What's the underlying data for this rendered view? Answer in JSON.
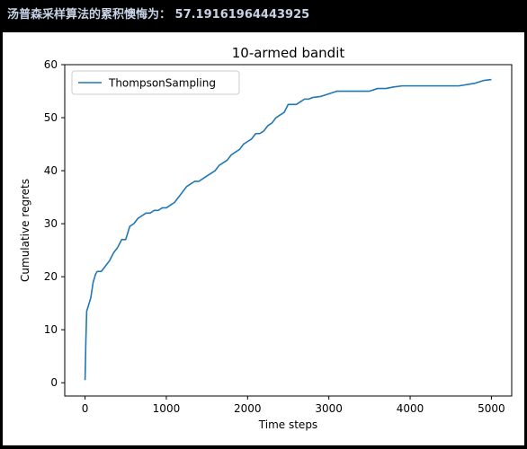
{
  "output": {
    "text": "汤普森采样算法的累积懊悔为： 57.19161964443925"
  },
  "colors": {
    "series": "#1f77b4",
    "background": "#000000",
    "output_text": "#c7d2e4"
  },
  "chart_data": {
    "type": "line",
    "title": "10-armed bandit",
    "xlabel": "Time steps",
    "ylabel": "Cumulative regrets",
    "xlim": [
      -250,
      5250
    ],
    "ylim": [
      -2.5,
      60
    ],
    "xticks": [
      0,
      1000,
      2000,
      3000,
      4000,
      5000
    ],
    "yticks": [
      0,
      10,
      20,
      30,
      40,
      50,
      60
    ],
    "grid": false,
    "legend_position": "upper-left",
    "series": [
      {
        "name": "ThompsonSampling",
        "x": [
          0,
          10,
          20,
          30,
          40,
          50,
          70,
          100,
          130,
          150,
          170,
          200,
          250,
          300,
          350,
          400,
          450,
          500,
          550,
          600,
          650,
          700,
          750,
          800,
          850,
          900,
          950,
          1000,
          1050,
          1100,
          1150,
          1200,
          1250,
          1300,
          1350,
          1400,
          1450,
          1500,
          1550,
          1600,
          1650,
          1700,
          1750,
          1800,
          1850,
          1900,
          1950,
          2000,
          2050,
          2100,
          2150,
          2200,
          2250,
          2300,
          2350,
          2400,
          2450,
          2500,
          2550,
          2600,
          2650,
          2700,
          2750,
          2800,
          2900,
          3000,
          3100,
          3200,
          3300,
          3400,
          3500,
          3600,
          3700,
          3800,
          3900,
          4000,
          4200,
          4400,
          4600,
          4800,
          4900,
          5000
        ],
        "values": [
          0.5,
          8,
          13.5,
          14,
          14.5,
          15,
          16,
          19,
          20.5,
          21,
          21,
          21,
          22,
          23,
          24.5,
          25.5,
          27,
          27,
          29.5,
          30,
          31,
          31.5,
          32,
          32,
          32.5,
          32.5,
          33,
          33,
          33.5,
          34,
          35,
          36,
          37,
          37.5,
          38,
          38,
          38.5,
          39,
          39.5,
          40,
          41,
          41.5,
          42,
          43,
          43.5,
          44,
          45,
          45.5,
          46,
          47,
          47,
          47.5,
          48.5,
          49,
          50,
          50.5,
          51,
          52.5,
          52.5,
          52.5,
          53,
          53.5,
          53.5,
          53.8,
          54,
          54.5,
          55,
          55,
          55,
          55,
          55,
          55.5,
          55.5,
          55.8,
          56,
          56,
          56,
          56,
          56,
          56.5,
          57,
          57.2
        ]
      }
    ]
  }
}
